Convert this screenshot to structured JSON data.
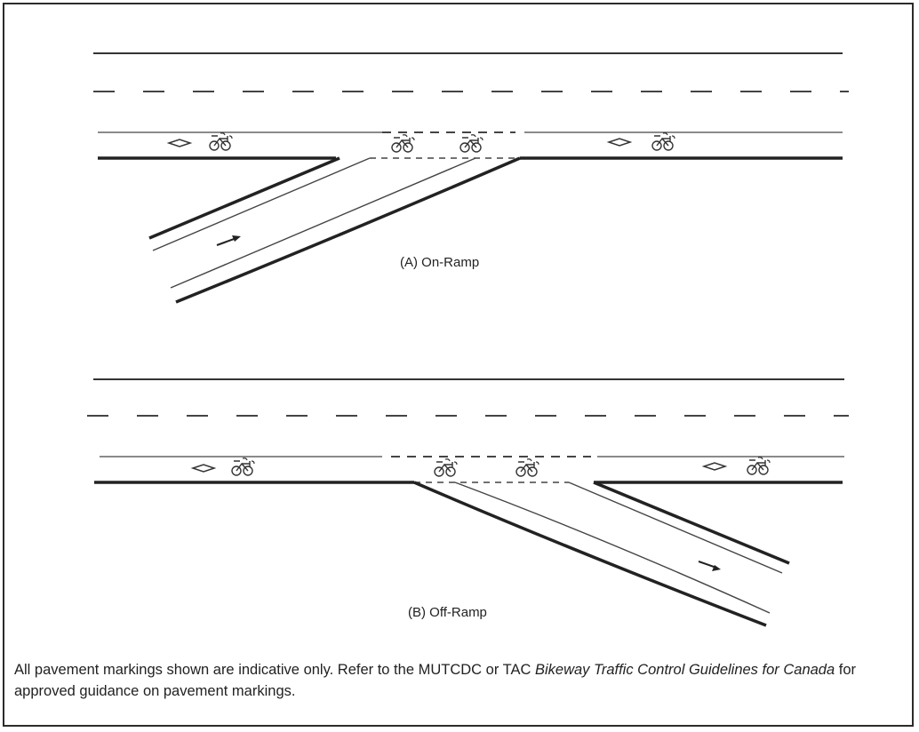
{
  "panels": [
    {
      "caption": "(A) On-Ramp"
    },
    {
      "caption": "(B) Off-Ramp"
    }
  ],
  "note": {
    "part1": "All pavement markings shown are indicative only. Refer to the MUTCDC or TAC ",
    "italic1": "Bikeway Traffic Control Guidelines for Canada",
    "part2": " for approved guidance on pavement markings."
  }
}
